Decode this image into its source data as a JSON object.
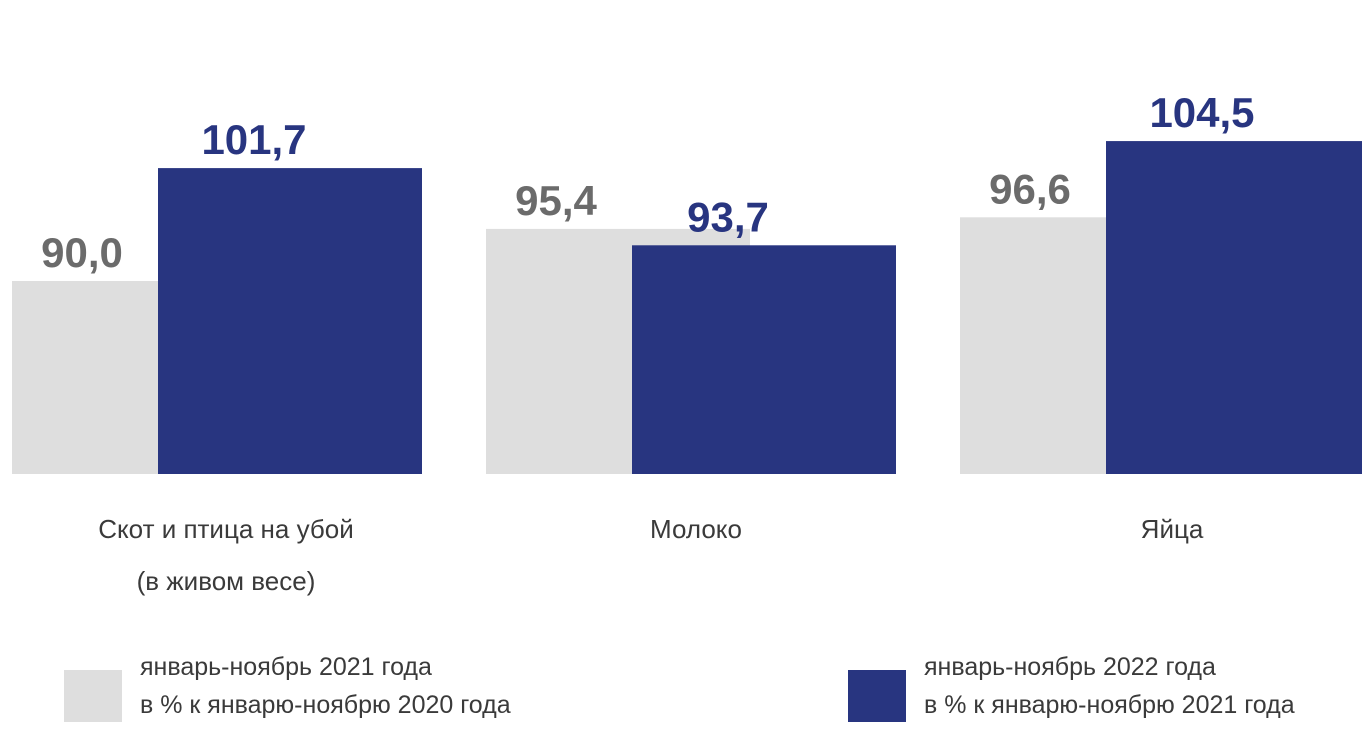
{
  "chart_data": {
    "type": "bar",
    "categories": [
      [
        "Скот и птица на убой",
        "(в живом весе)"
      ],
      [
        "Молоко"
      ],
      [
        "Яйца"
      ]
    ],
    "series": [
      {
        "name_lines": [
          "январь-ноябрь 2021 года",
          "в % к январю-ноябрю 2020 года"
        ],
        "values": [
          90.0,
          95.4,
          96.6
        ],
        "labels": [
          "90,0",
          "95,4",
          "96,6"
        ],
        "color": "#dedede",
        "label_color": "#6b6b6b"
      },
      {
        "name_lines": [
          "январь-ноябрь 2022 года",
          "в % к январю-ноябрю 2021 года"
        ],
        "values": [
          101.7,
          93.7,
          104.5
        ],
        "labels": [
          "101,7",
          "93,7",
          "104,5"
        ],
        "color": "#283580",
        "label_color": "#283580"
      }
    ],
    "ylim": [
      70,
      110
    ],
    "grid": false,
    "legend_position": "bottom"
  }
}
